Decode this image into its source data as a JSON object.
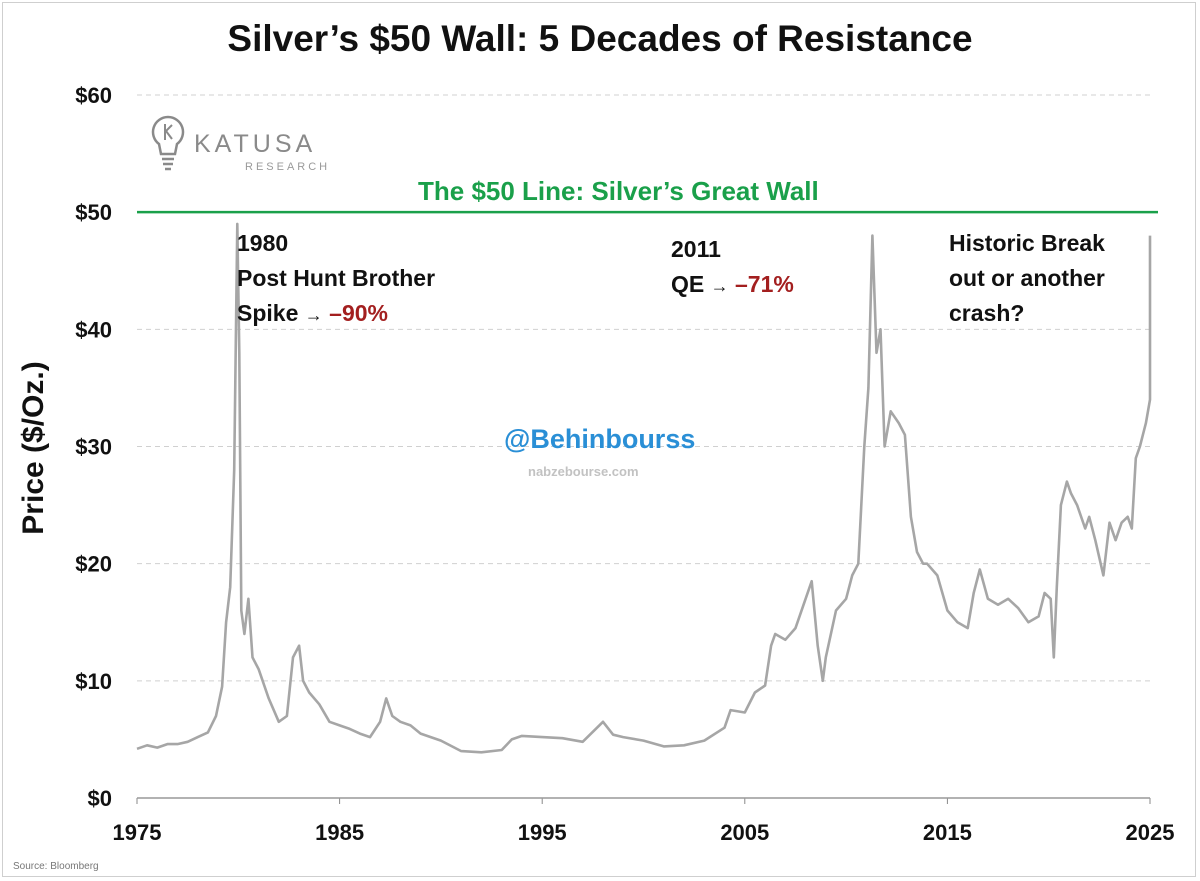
{
  "title": "Silver’s $50 Wall: 5 Decades of Resistance",
  "source": "Source: Bloomberg",
  "logo": {
    "name": "KATUSA",
    "sub": "RESEARCH",
    "icon": "lightbulb-k-icon"
  },
  "watermark": {
    "handle": "@Behinbourss",
    "site": "nabzebourse.com"
  },
  "annotations": {
    "a1980": {
      "line1": "1980",
      "line2": "Post Hunt Brother",
      "line3_prefix": "Spike",
      "arrow": "→",
      "change": "–90%"
    },
    "a2011": {
      "line1": "2011",
      "line2_prefix": "QE",
      "arrow": "→",
      "change": "–71%"
    },
    "a2025": {
      "line1": "Historic Break",
      "line2": "out or another",
      "line3": "crash?"
    }
  },
  "colors": {
    "series": "#a6a6a6",
    "wall": "#1aa04a",
    "decline": "#a31f1f",
    "grid": "#d0d0d0"
  },
  "chart_data": {
    "type": "line",
    "title": "Silver’s $50 Wall: 5 Decades of Resistance",
    "xlabel": "",
    "ylabel": "Price ($/Oz.)",
    "xlim": [
      1975,
      2025
    ],
    "ylim": [
      0,
      60
    ],
    "x_ticks": [
      "1975",
      "1985",
      "1995",
      "2005",
      "2015",
      "2025"
    ],
    "y_ticks": [
      "$0",
      "$10",
      "$20",
      "$30",
      "$40",
      "$50",
      "$60"
    ],
    "grid": "horizontal dashed",
    "reference_line": {
      "y": 50,
      "label": "The $50 Line: Silver’s Great Wall"
    },
    "series": [
      {
        "x": [
          1975.0,
          1975.5,
          1976.0,
          1976.5,
          1977.0,
          1977.5,
          1978.0,
          1978.5,
          1978.9,
          1979.2,
          1979.4,
          1979.6,
          1979.8,
          1979.95,
          1980.05,
          1980.15,
          1980.3,
          1980.5,
          1980.7,
          1981.0,
          1981.5,
          1982.0,
          1982.4,
          1982.7,
          1983.0,
          1983.2,
          1983.5,
          1984.0,
          1984.5,
          1985.0,
          1985.5,
          1986.0,
          1986.5,
          1987.0,
          1987.3,
          1987.6,
          1988.0,
          1988.5,
          1989.0,
          1990.0,
          1991.0,
          1992.0,
          1993.0,
          1993.5,
          1994.0,
          1995.0,
          1996.0,
          1997.0,
          1998.0,
          1998.5,
          1999.0,
          2000.0,
          2001.0,
          2002.0,
          2003.0,
          2004.0,
          2004.3,
          2005.0,
          2005.5,
          2006.0,
          2006.3,
          2006.5,
          2007.0,
          2007.5,
          2008.0,
          2008.3,
          2008.6,
          2008.85,
          2009.0,
          2009.5,
          2010.0,
          2010.3,
          2010.6,
          2010.9,
          2011.1,
          2011.3,
          2011.5,
          2011.7,
          2011.9,
          2012.2,
          2012.6,
          2012.9,
          2013.2,
          2013.5,
          2013.8,
          2014.0,
          2014.5,
          2015.0,
          2015.5,
          2016.0,
          2016.3,
          2016.6,
          2017.0,
          2017.5,
          2018.0,
          2018.5,
          2019.0,
          2019.5,
          2019.8,
          2020.1,
          2020.25,
          2020.4,
          2020.6,
          2020.9,
          2021.1,
          2021.4,
          2021.8,
          2022.0,
          2022.3,
          2022.7,
          2023.0,
          2023.3,
          2023.6,
          2023.9,
          2024.1,
          2024.3,
          2024.5,
          2024.8,
          2025.0,
          2025.2
        ],
        "y": [
          4.2,
          4.5,
          4.3,
          4.6,
          4.6,
          4.8,
          5.2,
          5.6,
          7.0,
          9.5,
          15.0,
          18.0,
          28.0,
          49.0,
          38.0,
          16.0,
          14.0,
          17.0,
          12.0,
          11.0,
          8.5,
          6.5,
          7.0,
          12.0,
          13.0,
          10.0,
          9.0,
          8.0,
          6.5,
          6.2,
          5.9,
          5.5,
          5.2,
          6.5,
          8.5,
          7.0,
          6.5,
          6.2,
          5.5,
          4.9,
          4.0,
          3.9,
          4.1,
          5.0,
          5.3,
          5.2,
          5.1,
          4.8,
          6.5,
          5.4,
          5.2,
          4.9,
          4.4,
          4.5,
          4.9,
          6.0,
          7.5,
          7.3,
          9.0,
          9.6,
          13.0,
          14.0,
          13.5,
          14.5,
          17.0,
          18.5,
          13.0,
          10.0,
          12.0,
          16.0,
          17.0,
          19.0,
          20.0,
          30.0,
          35.0,
          48.0,
          38.0,
          40.0,
          30.0,
          33.0,
          32.0,
          31.0,
          24.0,
          21.0,
          20.0,
          20.0,
          19.0,
          16.0,
          15.0,
          14.5,
          17.5,
          19.5,
          17.0,
          16.5,
          17.0,
          16.2,
          15.0,
          15.5,
          17.5,
          17.0,
          12.0,
          18.0,
          25.0,
          27.0,
          26.0,
          25.0,
          23.0,
          24.0,
          22.0,
          19.0,
          23.5,
          22.0,
          23.5,
          24.0,
          23.0,
          29.0,
          30.0,
          32.0,
          34.0,
          48.0
        ]
      }
    ]
  }
}
